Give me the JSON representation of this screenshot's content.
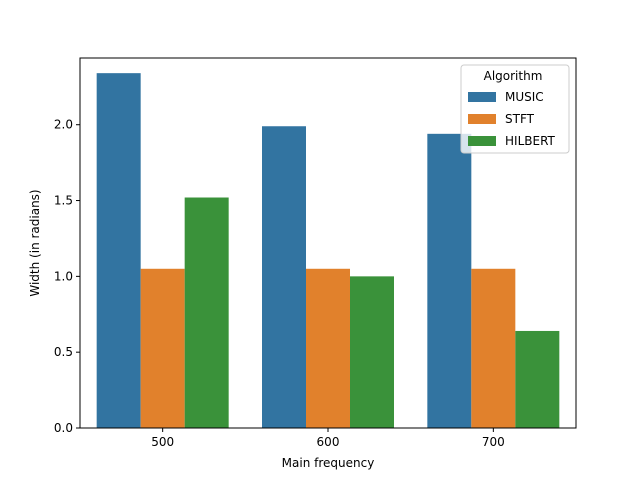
{
  "chart_data": {
    "type": "bar",
    "xlabel": "Main frequency",
    "ylabel": "Width (in radians)",
    "categories": [
      "500",
      "600",
      "700"
    ],
    "series": [
      {
        "name": "MUSIC",
        "color": "#3274a1",
        "values": [
          2.34,
          1.99,
          1.94
        ]
      },
      {
        "name": "STFT",
        "color": "#e1812c",
        "values": [
          1.05,
          1.05,
          1.05
        ]
      },
      {
        "name": "HILBERT",
        "color": "#3a923a",
        "values": [
          1.52,
          1.0,
          0.64
        ]
      }
    ],
    "ylim": [
      0,
      2.44
    ],
    "yticks": [
      "0.0",
      "0.5",
      "1.0",
      "1.5",
      "2.0"
    ],
    "grid": false,
    "legend": {
      "title": "Algorithm",
      "placement": "top-right"
    }
  }
}
